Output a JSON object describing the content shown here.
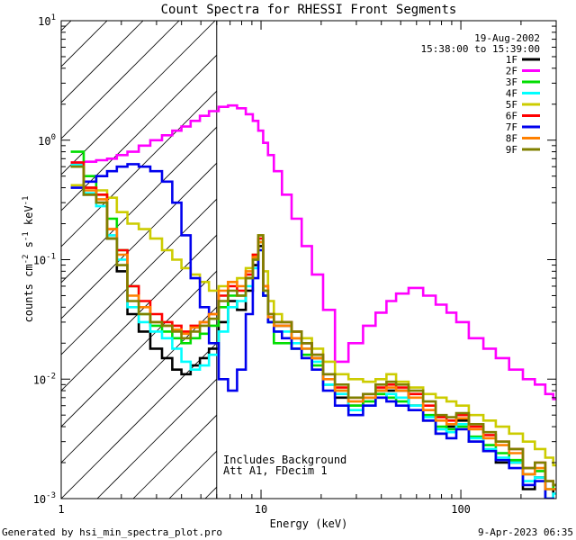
{
  "chart_data": {
    "type": "line",
    "title": "Count Spectra for RHESSI Front Segments",
    "xlabel": "Energy (keV)",
    "ylabel_parts": [
      "counts cm",
      "-2",
      " s",
      "-1",
      " keV",
      "-1"
    ],
    "x_scale": "log",
    "y_scale": "log",
    "xlim": [
      1,
      300
    ],
    "ylim": [
      0.001,
      10
    ],
    "x_ticks": [
      {
        "value": 1,
        "label": "1"
      },
      {
        "value": 10,
        "label": "10"
      },
      {
        "value": 100,
        "label": "100"
      }
    ],
    "y_ticks": [
      {
        "value": 0.001,
        "base": "10",
        "exp": "-3"
      },
      {
        "value": 0.01,
        "base": "10",
        "exp": "-2"
      },
      {
        "value": 0.1,
        "base": "10",
        "exp": "-1"
      },
      {
        "value": 1,
        "base": "10",
        "exp": "0"
      },
      {
        "value": 10,
        "base": "10",
        "exp": "1"
      }
    ],
    "shaded_region_xmax": 6,
    "legend_date": "19-Aug-2002",
    "legend_time": "15:38:00 to 15:39:00",
    "annotation_lines": [
      "Includes Background",
      "Att A1, FDecim 1"
    ],
    "series": [
      {
        "name": "1F",
        "color": "#000000",
        "x": [
          1.2,
          1.4,
          1.6,
          1.8,
          2.0,
          2.3,
          2.6,
          3.0,
          3.4,
          3.8,
          4.2,
          4.7,
          5.2,
          5.8,
          6.5,
          7.2,
          8.0,
          8.8,
          9.4,
          10.0,
          10.5,
          11.2,
          12.0,
          13.5,
          15.0,
          17.0,
          19.0,
          22.0,
          25.0,
          30.0,
          35.0,
          40.0,
          45.0,
          50.0,
          60.0,
          70.0,
          80.0,
          90.0,
          100.0,
          120.0,
          140.0,
          160.0,
          190.0,
          220.0,
          250.0,
          280.0,
          300.0
        ],
        "values": [
          0.6,
          0.35,
          0.3,
          0.15,
          0.08,
          0.035,
          0.025,
          0.018,
          0.015,
          0.012,
          0.011,
          0.013,
          0.015,
          0.018,
          0.03,
          0.045,
          0.038,
          0.055,
          0.09,
          0.13,
          0.05,
          0.03,
          0.028,
          0.028,
          0.022,
          0.02,
          0.015,
          0.009,
          0.007,
          0.006,
          0.007,
          0.008,
          0.008,
          0.008,
          0.006,
          0.0045,
          0.0035,
          0.004,
          0.0045,
          0.003,
          0.0025,
          0.002,
          0.002,
          0.0012,
          0.0015,
          0.0009,
          0.0012
        ]
      },
      {
        "name": "2F",
        "color": "#ff00ff",
        "x": [
          1.2,
          1.4,
          1.6,
          1.8,
          2.0,
          2.3,
          2.6,
          3.0,
          3.4,
          3.8,
          4.2,
          4.7,
          5.2,
          5.8,
          6.5,
          7.2,
          8.0,
          8.8,
          9.4,
          10.0,
          10.5,
          11.2,
          12.0,
          13.5,
          15.0,
          17.0,
          19.0,
          22.0,
          25.0,
          30.0,
          35.0,
          40.0,
          45.0,
          50.0,
          60.0,
          70.0,
          80.0,
          90.0,
          100.0,
          120.0,
          140.0,
          160.0,
          190.0,
          220.0,
          250.0,
          280.0,
          300.0
        ],
        "values": [
          0.65,
          0.66,
          0.68,
          0.7,
          0.75,
          0.8,
          0.9,
          1.0,
          1.1,
          1.2,
          1.3,
          1.45,
          1.6,
          1.75,
          1.9,
          1.95,
          1.85,
          1.65,
          1.45,
          1.2,
          0.95,
          0.75,
          0.55,
          0.35,
          0.22,
          0.13,
          0.075,
          0.038,
          0.014,
          0.02,
          0.028,
          0.036,
          0.045,
          0.052,
          0.058,
          0.05,
          0.042,
          0.036,
          0.03,
          0.022,
          0.018,
          0.015,
          0.012,
          0.01,
          0.009,
          0.0075,
          0.0068
        ]
      },
      {
        "name": "3F",
        "color": "#00dd00",
        "x": [
          1.2,
          1.4,
          1.6,
          1.8,
          2.0,
          2.3,
          2.6,
          3.0,
          3.4,
          3.8,
          4.2,
          4.7,
          5.2,
          5.8,
          6.5,
          7.2,
          8.0,
          8.8,
          9.4,
          10.0,
          10.5,
          11.2,
          12.0,
          13.5,
          15.0,
          17.0,
          19.0,
          22.0,
          25.0,
          30.0,
          35.0,
          40.0,
          45.0,
          50.0,
          60.0,
          70.0,
          80.0,
          90.0,
          100.0,
          120.0,
          140.0,
          160.0,
          190.0,
          220.0,
          250.0,
          280.0,
          300.0
        ],
        "values": [
          0.8,
          0.5,
          0.35,
          0.22,
          0.12,
          0.06,
          0.035,
          0.028,
          0.025,
          0.022,
          0.02,
          0.022,
          0.024,
          0.028,
          0.04,
          0.05,
          0.05,
          0.07,
          0.1,
          0.14,
          0.055,
          0.03,
          0.02,
          0.02,
          0.018,
          0.016,
          0.013,
          0.009,
          0.008,
          0.006,
          0.0065,
          0.0075,
          0.007,
          0.0065,
          0.006,
          0.005,
          0.004,
          0.0038,
          0.004,
          0.0033,
          0.0028,
          0.0024,
          0.0021,
          0.0016,
          0.0017,
          0.0012,
          0.0013
        ]
      },
      {
        "name": "4F",
        "color": "#00ffff",
        "x": [
          1.2,
          1.4,
          1.6,
          1.8,
          2.0,
          2.3,
          2.6,
          3.0,
          3.4,
          3.8,
          4.2,
          4.7,
          5.2,
          5.8,
          6.5,
          7.2,
          8.0,
          8.8,
          9.4,
          10.0,
          10.5,
          11.2,
          12.0,
          13.5,
          15.0,
          17.0,
          19.0,
          22.0,
          25.0,
          30.0,
          35.0,
          40.0,
          45.0,
          50.0,
          60.0,
          70.0,
          80.0,
          90.0,
          100.0,
          120.0,
          140.0,
          160.0,
          190.0,
          220.0,
          250.0,
          280.0,
          300.0
        ],
        "values": [
          0.62,
          0.36,
          0.28,
          0.16,
          0.1,
          0.04,
          0.03,
          0.025,
          0.022,
          0.018,
          0.014,
          0.012,
          0.013,
          0.016,
          0.025,
          0.04,
          0.045,
          0.06,
          0.085,
          0.12,
          0.05,
          0.03,
          0.025,
          0.025,
          0.02,
          0.018,
          0.014,
          0.009,
          0.0075,
          0.0055,
          0.006,
          0.007,
          0.0075,
          0.007,
          0.006,
          0.0048,
          0.0038,
          0.0036,
          0.0042,
          0.0032,
          0.0026,
          0.0022,
          0.002,
          0.0014,
          0.0015,
          0.001,
          0.0011
        ]
      },
      {
        "name": "5F",
        "color": "#cccc00",
        "x": [
          1.2,
          1.4,
          1.6,
          1.8,
          2.0,
          2.3,
          2.6,
          3.0,
          3.4,
          3.8,
          4.2,
          4.7,
          5.2,
          5.8,
          6.5,
          7.2,
          8.0,
          8.8,
          9.4,
          10.0,
          10.5,
          11.2,
          12.0,
          13.5,
          15.0,
          17.0,
          19.0,
          22.0,
          25.0,
          30.0,
          35.0,
          40.0,
          45.0,
          50.0,
          60.0,
          70.0,
          80.0,
          90.0,
          100.0,
          120.0,
          140.0,
          160.0,
          190.0,
          220.0,
          250.0,
          280.0,
          300.0
        ],
        "values": [
          0.42,
          0.4,
          0.38,
          0.33,
          0.25,
          0.2,
          0.18,
          0.15,
          0.12,
          0.1,
          0.085,
          0.075,
          0.065,
          0.055,
          0.06,
          0.065,
          0.07,
          0.085,
          0.11,
          0.16,
          0.08,
          0.045,
          0.035,
          0.03,
          0.025,
          0.022,
          0.018,
          0.014,
          0.011,
          0.01,
          0.0095,
          0.01,
          0.011,
          0.0095,
          0.0085,
          0.0075,
          0.007,
          0.0065,
          0.006,
          0.005,
          0.0045,
          0.004,
          0.0035,
          0.003,
          0.0026,
          0.0022,
          0.0019
        ]
      },
      {
        "name": "6F",
        "color": "#ff0000",
        "x": [
          1.2,
          1.4,
          1.6,
          1.8,
          2.0,
          2.3,
          2.6,
          3.0,
          3.4,
          3.8,
          4.2,
          4.7,
          5.2,
          5.8,
          6.5,
          7.2,
          8.0,
          8.8,
          9.4,
          10.0,
          10.5,
          11.2,
          12.0,
          13.5,
          15.0,
          17.0,
          19.0,
          22.0,
          25.0,
          30.0,
          35.0,
          40.0,
          45.0,
          50.0,
          60.0,
          70.0,
          80.0,
          90.0,
          100.0,
          120.0,
          140.0,
          160.0,
          190.0,
          220.0,
          250.0,
          280.0,
          300.0
        ],
        "values": [
          0.65,
          0.4,
          0.35,
          0.18,
          0.12,
          0.06,
          0.045,
          0.035,
          0.03,
          0.028,
          0.025,
          0.028,
          0.03,
          0.035,
          0.05,
          0.06,
          0.055,
          0.075,
          0.11,
          0.15,
          0.06,
          0.035,
          0.03,
          0.03,
          0.025,
          0.02,
          0.016,
          0.011,
          0.0085,
          0.007,
          0.0075,
          0.0085,
          0.009,
          0.0085,
          0.0075,
          0.006,
          0.0048,
          0.0045,
          0.005,
          0.004,
          0.0034,
          0.003,
          0.0026,
          0.0018,
          0.002,
          0.0014,
          0.0013
        ]
      },
      {
        "name": "7F",
        "color": "#0000ee",
        "x": [
          1.2,
          1.4,
          1.6,
          1.8,
          2.0,
          2.3,
          2.6,
          3.0,
          3.4,
          3.8,
          4.2,
          4.7,
          5.2,
          5.8,
          6.5,
          7.2,
          8.0,
          8.8,
          9.4,
          10.0,
          10.5,
          11.2,
          12.0,
          13.5,
          15.0,
          17.0,
          19.0,
          22.0,
          25.0,
          30.0,
          35.0,
          40.0,
          45.0,
          50.0,
          60.0,
          70.0,
          80.0,
          90.0,
          100.0,
          120.0,
          140.0,
          160.0,
          190.0,
          220.0,
          250.0,
          280.0,
          300.0
        ],
        "values": [
          0.4,
          0.45,
          0.5,
          0.55,
          0.6,
          0.63,
          0.6,
          0.55,
          0.45,
          0.3,
          0.16,
          0.07,
          0.04,
          0.02,
          0.01,
          0.008,
          0.012,
          0.035,
          0.07,
          0.12,
          0.05,
          0.03,
          0.025,
          0.022,
          0.018,
          0.015,
          0.012,
          0.008,
          0.006,
          0.005,
          0.006,
          0.007,
          0.0065,
          0.006,
          0.0055,
          0.0045,
          0.0035,
          0.0032,
          0.0038,
          0.003,
          0.0025,
          0.0021,
          0.0018,
          0.0013,
          0.0014,
          0.001,
          0.0009
        ]
      },
      {
        "name": "8F",
        "color": "#ff8000",
        "x": [
          1.2,
          1.4,
          1.6,
          1.8,
          2.0,
          2.3,
          2.6,
          3.0,
          3.4,
          3.8,
          4.2,
          4.7,
          5.2,
          5.8,
          6.5,
          7.2,
          8.0,
          8.8,
          9.4,
          10.0,
          10.5,
          11.2,
          12.0,
          13.5,
          15.0,
          17.0,
          19.0,
          22.0,
          25.0,
          30.0,
          35.0,
          40.0,
          45.0,
          50.0,
          60.0,
          70.0,
          80.0,
          90.0,
          100.0,
          120.0,
          140.0,
          160.0,
          190.0,
          220.0,
          250.0,
          280.0,
          300.0
        ],
        "values": [
          0.6,
          0.38,
          0.32,
          0.18,
          0.11,
          0.05,
          0.04,
          0.03,
          0.028,
          0.026,
          0.024,
          0.027,
          0.03,
          0.035,
          0.055,
          0.065,
          0.06,
          0.08,
          0.105,
          0.14,
          0.06,
          0.033,
          0.028,
          0.028,
          0.022,
          0.018,
          0.015,
          0.01,
          0.008,
          0.0065,
          0.007,
          0.008,
          0.0085,
          0.008,
          0.007,
          0.0055,
          0.0045,
          0.0042,
          0.0047,
          0.0038,
          0.0032,
          0.0028,
          0.0024,
          0.0016,
          0.0018,
          0.0012,
          0.0012
        ]
      },
      {
        "name": "9F",
        "color": "#808000",
        "x": [
          1.2,
          1.4,
          1.6,
          1.8,
          2.0,
          2.3,
          2.6,
          3.0,
          3.4,
          3.8,
          4.2,
          4.7,
          5.2,
          5.8,
          6.5,
          7.2,
          8.0,
          8.8,
          9.4,
          10.0,
          10.5,
          11.2,
          12.0,
          13.5,
          15.0,
          17.0,
          19.0,
          22.0,
          25.0,
          30.0,
          35.0,
          40.0,
          45.0,
          50.0,
          60.0,
          70.0,
          80.0,
          90.0,
          100.0,
          120.0,
          140.0,
          160.0,
          190.0,
          220.0,
          250.0,
          280.0,
          300.0
        ],
        "values": [
          0.6,
          0.35,
          0.3,
          0.15,
          0.09,
          0.045,
          0.035,
          0.03,
          0.028,
          0.025,
          0.022,
          0.025,
          0.028,
          0.032,
          0.045,
          0.055,
          0.05,
          0.07,
          0.1,
          0.16,
          0.055,
          0.035,
          0.03,
          0.03,
          0.025,
          0.02,
          0.016,
          0.011,
          0.009,
          0.007,
          0.0075,
          0.009,
          0.0095,
          0.009,
          0.008,
          0.0065,
          0.005,
          0.0048,
          0.0052,
          0.0042,
          0.0036,
          0.003,
          0.0026,
          0.0018,
          0.002,
          0.0014,
          0.0013
        ]
      }
    ]
  },
  "footer": {
    "generated_by": "Generated by hsi_min_spectra_plot.pro",
    "timestamp": "9-Apr-2023 06:35"
  }
}
